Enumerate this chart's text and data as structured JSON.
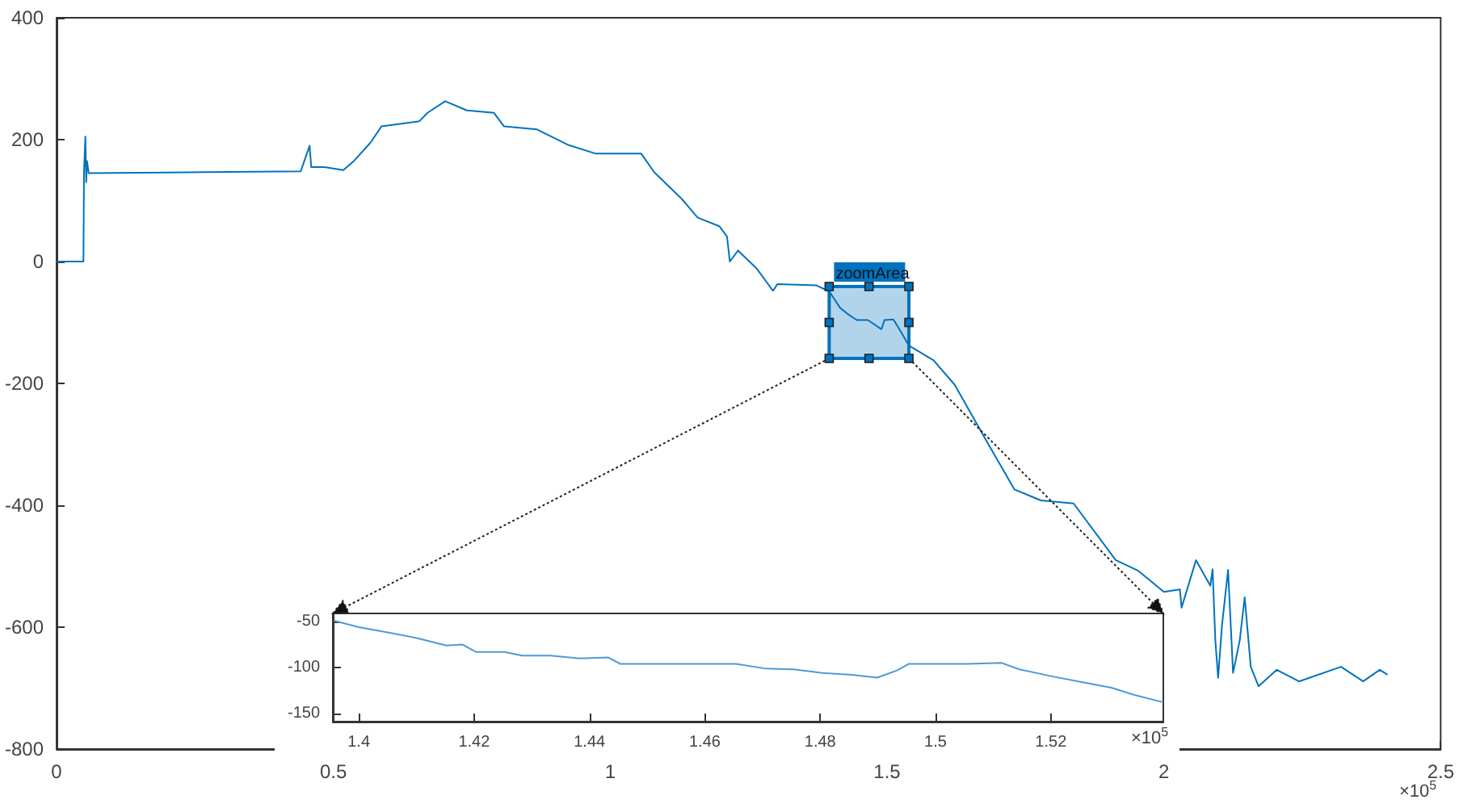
{
  "chart_data": [
    {
      "type": "line",
      "xlim": [
        0,
        2.5
      ],
      "xticks": [
        0,
        0.5,
        1,
        1.5,
        2,
        2.5
      ],
      "ylim": [
        -800,
        400
      ],
      "yticks": [
        -800,
        -600,
        -400,
        -200,
        0,
        200,
        400
      ],
      "grid": false,
      "marker": "none",
      "line_style": "solid",
      "annotations": [
        "zoomArea",
        "×10$^{5}$"
      ],
      "series": [
        {
          "color": "#0072bd",
          "x": [
            0,
            0.0485,
            0.0495,
            0.052,
            0.0535,
            0.055,
            0.058,
            0.2,
            0.441,
            0.457,
            0.46,
            0.484,
            0.518,
            0.537,
            0.567,
            0.587,
            0.655,
            0.67,
            0.702,
            0.741,
            0.79,
            0.808,
            0.867,
            0.925,
            0.974,
            1.041,
            1.056,
            1.08,
            1.129,
            1.158,
            1.197,
            1.211,
            1.216,
            1.231,
            1.265,
            1.294,
            1.302,
            1.372,
            1.3957,
            1.4152,
            1.4303,
            1.4453,
            1.4654,
            1.4899,
            1.4954,
            1.5115,
            1.5255,
            1.5395,
            1.584,
            1.622,
            1.68,
            1.73,
            1.778,
            1.837,
            1.913,
            1.953,
            2.0,
            2.029,
            2.032,
            2.058,
            2.084,
            2.088,
            2.093,
            2.098,
            2.105,
            2.116,
            2.125,
            2.137,
            2.146,
            2.157,
            2.171,
            2.204,
            2.244,
            2.32,
            2.36,
            2.39,
            2.404
          ],
          "values": [
            0,
            0,
            146,
            205,
            130,
            165,
            145,
            146,
            148,
            190,
            155,
            155,
            150,
            165,
            195,
            222,
            230,
            244,
            263,
            248,
            244,
            222,
            217,
            191,
            177,
            177,
            177,
            146,
            103,
            72,
            58,
            41,
            0,
            18,
            -12,
            -48,
            -37,
            -39,
            -49,
            -76,
            -87,
            -96,
            -96,
            -111,
            -96,
            -95,
            -116,
            -138,
            -162,
            -202,
            -295,
            -374,
            -392,
            -397,
            -490,
            -507,
            -542,
            -538,
            -568,
            -490,
            -532,
            -505,
            -622,
            -683,
            -597,
            -506,
            -675,
            -622,
            -551,
            -665,
            -697,
            -670,
            -689,
            -665,
            -689,
            -670,
            -678
          ]
        }
      ]
    },
    {
      "type": "line",
      "xlim": [
        1.3955,
        1.5395
      ],
      "xticks": [
        1.4,
        1.42,
        1.44,
        1.46,
        1.48,
        1.5,
        1.52
      ],
      "ylim": [
        -159,
        -41
      ],
      "yticks": [
        -150,
        -100,
        -50
      ],
      "grid": false,
      "marker": "none",
      "line_style": "solid",
      "annotations": [
        "×10$^{5}$"
      ],
      "series": [
        {
          "color": "#4d9ad8",
          "x": [
            1.3957,
            1.4,
            1.4052,
            1.4102,
            1.4152,
            1.418,
            1.4203,
            1.4253,
            1.4283,
            1.4333,
            1.4383,
            1.4433,
            1.4453,
            1.4553,
            1.4654,
            1.4704,
            1.4754,
            1.4804,
            1.4854,
            1.4899,
            1.4934,
            1.4954,
            1.5055,
            1.5115,
            1.5145,
            1.5205,
            1.5255,
            1.5305,
            1.5345,
            1.5395
          ],
          "values": [
            -49,
            -56,
            -62,
            -68,
            -76,
            -75,
            -83,
            -83,
            -87,
            -87,
            -90,
            -89,
            -96,
            -96,
            -96,
            -101,
            -102,
            -106,
            -108,
            -111,
            -103,
            -96,
            -96,
            -95,
            -102,
            -110,
            -116,
            -122,
            -130,
            -138
          ]
        }
      ]
    }
  ]
}
